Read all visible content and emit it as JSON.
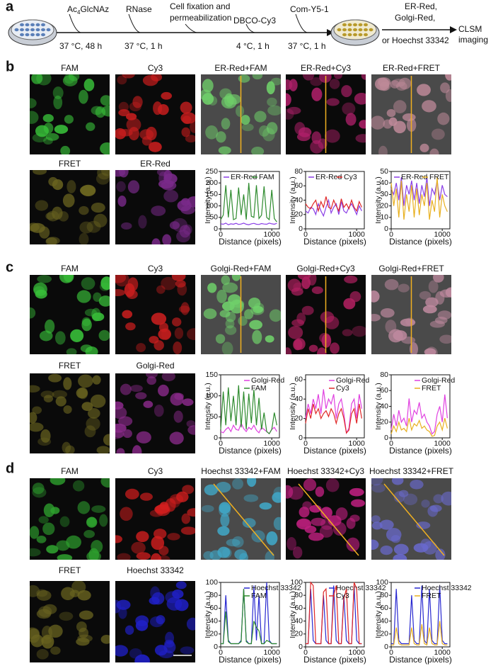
{
  "schematic": {
    "label": "a",
    "reagent_prefix": "Ac",
    "reagent_sub": "4",
    "reagent_suffix": "GlcNAz",
    "steps": [
      "RNase",
      "Cell fixation and",
      "permeabilization",
      "DBCO-Cy3",
      "Com-Y5-1"
    ],
    "conditions": [
      "37 °C, 48 h",
      "37 °C, 1 h",
      "4 °C, 1 h",
      "37 °C, 1 h"
    ],
    "stains": [
      "ER-Red,",
      "Golgi-Red,",
      "or Hoechst 33342"
    ],
    "result": [
      "CLSM",
      "imaging"
    ]
  },
  "panels": [
    {
      "label": "b",
      "images": [
        {
          "title": "FAM",
          "color": "#39c23a"
        },
        {
          "title": "Cy3",
          "color": "#c81e1e"
        },
        {
          "title": "ER-Red+FAM",
          "color": "#6fd06a"
        },
        {
          "title": "ER-Red+Cy3",
          "color": "#b0206a"
        },
        {
          "title": "ER-Red+FRET",
          "color": "#c08a9a"
        },
        {
          "title": "FRET",
          "color": "#6a6420"
        },
        {
          "title": "ER-Red",
          "color": "#7a2a8a"
        }
      ]
    },
    {
      "label": "c",
      "images": [
        {
          "title": "FAM",
          "color": "#39c23a"
        },
        {
          "title": "Cy3",
          "color": "#c81e1e"
        },
        {
          "title": "Golgi-Red+FAM",
          "color": "#6fd06a"
        },
        {
          "title": "Golgi-Red+Cy3",
          "color": "#b02060"
        },
        {
          "title": "Golgi-Red+FRET",
          "color": "#c08aa0"
        },
        {
          "title": "FRET",
          "color": "#6a6420"
        },
        {
          "title": "Golgi-Red",
          "color": "#8a2a8a"
        }
      ]
    },
    {
      "label": "d",
      "images": [
        {
          "title": "FAM",
          "color": "#2ea02e"
        },
        {
          "title": "Cy3",
          "color": "#d41e1e"
        },
        {
          "title": "Hoechst 33342+FAM",
          "color": "#40a8c8"
        },
        {
          "title": "Hoechst 33342+Cy3",
          "color": "#c02080"
        },
        {
          "title": "Hoechst 33342+FRET",
          "color": "#6a6ad0"
        },
        {
          "title": "FRET",
          "color": "#6a6420"
        },
        {
          "title": "Hoechst 33342",
          "color": "#2020c8"
        }
      ]
    }
  ],
  "chart_data": [
    {
      "type": "line",
      "ylabel": "Intensity (a.u.)",
      "xlabel": "Distance (pixels)",
      "x": [
        0,
        50,
        100,
        150,
        200,
        250,
        300,
        350,
        400,
        450,
        500,
        550,
        600,
        650,
        700,
        750,
        800,
        850,
        900,
        950,
        1000,
        1050,
        1100
      ],
      "xlim": [
        0,
        1150
      ],
      "xticks": [
        0,
        1000
      ],
      "ylim": [
        0,
        250
      ],
      "yticks": [
        0,
        50,
        100,
        150,
        200,
        250
      ],
      "series": [
        {
          "name": "ER-Red",
          "color": "#8a3ee6",
          "values": [
            22,
            20,
            25,
            18,
            22,
            20,
            24,
            19,
            21,
            25,
            20,
            18,
            22,
            24,
            20,
            19,
            23,
            21,
            20,
            25,
            22,
            20,
            24
          ]
        },
        {
          "name": "FAM",
          "color": "#2e8b2e",
          "values": [
            40,
            60,
            190,
            50,
            170,
            40,
            45,
            180,
            60,
            150,
            40,
            200,
            55,
            50,
            190,
            45,
            60,
            185,
            50,
            40,
            170,
            45,
            30
          ]
        }
      ]
    },
    {
      "type": "line",
      "ylabel": "Intensity (a.u.)",
      "xlabel": "Distance (pixels)",
      "x": [
        0,
        50,
        100,
        150,
        200,
        250,
        300,
        350,
        400,
        450,
        500,
        550,
        600,
        650,
        700,
        750,
        800,
        850,
        900,
        950,
        1000,
        1050,
        1100
      ],
      "xlim": [
        0,
        1150
      ],
      "xticks": [
        0,
        1000
      ],
      "ylim": [
        0,
        80
      ],
      "yticks": [
        0,
        20,
        40,
        60,
        80
      ],
      "series": [
        {
          "name": "ER-Red",
          "color": "#8a3ee6",
          "values": [
            25,
            22,
            30,
            28,
            20,
            35,
            25,
            18,
            30,
            40,
            22,
            30,
            35,
            20,
            38,
            25,
            22,
            30,
            35,
            28,
            20,
            32,
            25
          ]
        },
        {
          "name": "Cy3",
          "color": "#e02828",
          "values": [
            35,
            30,
            28,
            35,
            40,
            25,
            38,
            30,
            45,
            30,
            28,
            40,
            32,
            25,
            42,
            30,
            35,
            28,
            40,
            30,
            25,
            38,
            30
          ]
        }
      ]
    },
    {
      "type": "line",
      "ylabel": "Intensity (a.u.)",
      "xlabel": "Distance (pixels)",
      "x": [
        0,
        50,
        100,
        150,
        200,
        250,
        300,
        350,
        400,
        450,
        500,
        550,
        600,
        650,
        700,
        750,
        800,
        850,
        900,
        950,
        1000,
        1050,
        1100
      ],
      "xlim": [
        0,
        1150
      ],
      "xticks": [
        0,
        1000
      ],
      "ylim": [
        0,
        50
      ],
      "yticks": [
        0,
        10,
        20,
        30,
        40,
        50
      ],
      "series": [
        {
          "name": "ER-Red",
          "color": "#8a3ee6",
          "values": [
            35,
            30,
            40,
            25,
            45,
            20,
            38,
            30,
            42,
            25,
            40,
            22,
            38,
            28,
            45,
            20,
            35,
            30,
            42,
            25,
            38,
            30,
            28
          ]
        },
        {
          "name": "FRET",
          "color": "#e8b020",
          "values": [
            40,
            20,
            35,
            10,
            42,
            8,
            30,
            15,
            38,
            10,
            35,
            12,
            30,
            20,
            40,
            8,
            25,
            15,
            45,
            10,
            30,
            20,
            15
          ]
        }
      ]
    },
    {
      "type": "line",
      "ylabel": "Intensity (a.u.)",
      "xlabel": "Distance (pixels)",
      "x": [
        0,
        50,
        100,
        150,
        200,
        250,
        300,
        350,
        400,
        450,
        500,
        550,
        600,
        650,
        700,
        750,
        800,
        850,
        900,
        950,
        1000,
        1050,
        1100
      ],
      "xlim": [
        0,
        1150
      ],
      "xticks": [
        0,
        1000
      ],
      "ylim": [
        0,
        150
      ],
      "yticks": [
        0,
        50,
        100,
        150
      ],
      "series": [
        {
          "name": "Golgi-Red",
          "color": "#e040e0",
          "values": [
            15,
            12,
            20,
            25,
            15,
            30,
            20,
            18,
            35,
            22,
            15,
            25,
            20,
            30,
            18,
            12,
            25,
            20,
            15,
            10,
            20,
            25,
            15
          ]
        },
        {
          "name": "FAM",
          "color": "#2e8b2e",
          "values": [
            20,
            110,
            30,
            120,
            40,
            100,
            30,
            125,
            25,
            110,
            20,
            105,
            35,
            115,
            30,
            95,
            20,
            60,
            15,
            10,
            20,
            60,
            30
          ]
        }
      ]
    },
    {
      "type": "line",
      "ylabel": "Intensity (a.u.)",
      "xlabel": "Distance (pixels)",
      "x": [
        0,
        50,
        100,
        150,
        200,
        250,
        300,
        350,
        400,
        450,
        500,
        550,
        600,
        650,
        700,
        750,
        800,
        850,
        900,
        950,
        1000,
        1050,
        1100
      ],
      "xlim": [
        0,
        1150
      ],
      "xticks": [
        0,
        1000
      ],
      "ylim": [
        0,
        65
      ],
      "yticks": [
        0,
        20,
        40,
        60
      ],
      "series": [
        {
          "name": "Golgi-Red",
          "color": "#e040e0",
          "values": [
            20,
            35,
            25,
            40,
            30,
            45,
            25,
            50,
            30,
            40,
            35,
            45,
            20,
            35,
            40,
            25,
            5,
            10,
            35,
            40,
            20,
            45,
            30
          ]
        },
        {
          "name": "Cy3",
          "color": "#e02828",
          "values": [
            15,
            30,
            20,
            35,
            25,
            30,
            20,
            25,
            28,
            22,
            30,
            25,
            15,
            25,
            30,
            20,
            5,
            8,
            25,
            30,
            15,
            35,
            20
          ]
        }
      ]
    },
    {
      "type": "line",
      "ylabel": "Intensity (a.u.)",
      "xlabel": "Distance (pixels)",
      "x": [
        0,
        50,
        100,
        150,
        200,
        250,
        300,
        350,
        400,
        450,
        500,
        550,
        600,
        650,
        700,
        750,
        800,
        850,
        900,
        950,
        1000,
        1050,
        1100
      ],
      "xlim": [
        0,
        1150
      ],
      "xticks": [
        0,
        1000
      ],
      "ylim": [
        0,
        80
      ],
      "yticks": [
        0,
        20,
        40,
        60,
        80
      ],
      "series": [
        {
          "name": "Golgi-Red",
          "color": "#e040e0",
          "values": [
            10,
            30,
            15,
            35,
            20,
            25,
            15,
            50,
            20,
            35,
            30,
            45,
            25,
            30,
            20,
            15,
            5,
            8,
            30,
            40,
            20,
            55,
            25
          ]
        },
        {
          "name": "FRET",
          "color": "#e8b020",
          "values": [
            5,
            15,
            8,
            20,
            10,
            12,
            8,
            25,
            10,
            18,
            15,
            22,
            12,
            15,
            10,
            8,
            2,
            3,
            15,
            20,
            10,
            25,
            12
          ]
        }
      ]
    },
    {
      "type": "line",
      "ylabel": "Intensity (a.u.)",
      "xlabel": "Distance (pixels)",
      "x": [
        0,
        50,
        100,
        150,
        200,
        250,
        300,
        350,
        400,
        450,
        500,
        550,
        600,
        650,
        700,
        750,
        800,
        850,
        900,
        950,
        1000,
        1050,
        1100
      ],
      "xlim": [
        0,
        1150
      ],
      "xticks": [
        0,
        1000
      ],
      "ylim": [
        0,
        100
      ],
      "yticks": [
        0,
        20,
        40,
        60,
        80,
        100
      ],
      "series": [
        {
          "name": "Hoechst 33342",
          "color": "#2828d0",
          "values": [
            5,
            5,
            80,
            10,
            5,
            5,
            5,
            5,
            10,
            90,
            10,
            5,
            5,
            95,
            10,
            80,
            5,
            5,
            100,
            10,
            5,
            5,
            5
          ]
        },
        {
          "name": "FAM",
          "color": "#2e8b2e",
          "values": [
            5,
            5,
            55,
            8,
            5,
            5,
            5,
            5,
            8,
            90,
            8,
            5,
            5,
            40,
            30,
            25,
            5,
            5,
            10,
            8,
            5,
            5,
            5
          ]
        }
      ]
    },
    {
      "type": "line",
      "ylabel": "Intensity (a.u.)",
      "xlabel": "Distance (pixels)",
      "x": [
        0,
        50,
        100,
        150,
        200,
        250,
        300,
        350,
        400,
        450,
        500,
        550,
        600,
        650,
        700,
        750,
        800,
        850,
        900,
        950,
        1000,
        1050,
        1100
      ],
      "xlim": [
        0,
        1150
      ],
      "xticks": [
        0,
        1000
      ],
      "ylim": [
        0,
        100
      ],
      "yticks": [
        0,
        20,
        40,
        60,
        80,
        100
      ],
      "series": [
        {
          "name": "Hoechst 33342",
          "color": "#2828d0",
          "values": [
            5,
            5,
            90,
            10,
            5,
            5,
            5,
            80,
            10,
            5,
            5,
            95,
            10,
            5,
            5,
            80,
            10,
            5,
            5,
            95,
            10,
            5,
            5
          ]
        },
        {
          "name": "Cy3",
          "color": "#e02828",
          "values": [
            5,
            5,
            100,
            95,
            5,
            5,
            5,
            85,
            90,
            5,
            5,
            80,
            95,
            5,
            5,
            75,
            90,
            5,
            5,
            100,
            90,
            5,
            5
          ]
        }
      ]
    },
    {
      "type": "line",
      "ylabel": "Intensity (a.u.)",
      "xlabel": "Distance (pixels)",
      "x": [
        0,
        50,
        100,
        150,
        200,
        250,
        300,
        350,
        400,
        450,
        500,
        550,
        600,
        650,
        700,
        750,
        800,
        850,
        900,
        950,
        1000,
        1050,
        1100
      ],
      "xlim": [
        0,
        1150
      ],
      "xticks": [
        0,
        1000
      ],
      "ylim": [
        0,
        100
      ],
      "yticks": [
        0,
        20,
        40,
        60,
        80,
        100
      ],
      "series": [
        {
          "name": "Hoechst 33342",
          "color": "#2828d0",
          "values": [
            5,
            5,
            90,
            10,
            5,
            5,
            5,
            5,
            80,
            10,
            5,
            5,
            95,
            10,
            5,
            90,
            10,
            5,
            5,
            95,
            10,
            5,
            5
          ]
        },
        {
          "name": "FRET",
          "color": "#e8b020",
          "values": [
            3,
            3,
            30,
            5,
            3,
            3,
            3,
            3,
            30,
            5,
            3,
            3,
            35,
            5,
            3,
            30,
            5,
            3,
            3,
            40,
            5,
            3,
            3
          ]
        }
      ]
    }
  ]
}
